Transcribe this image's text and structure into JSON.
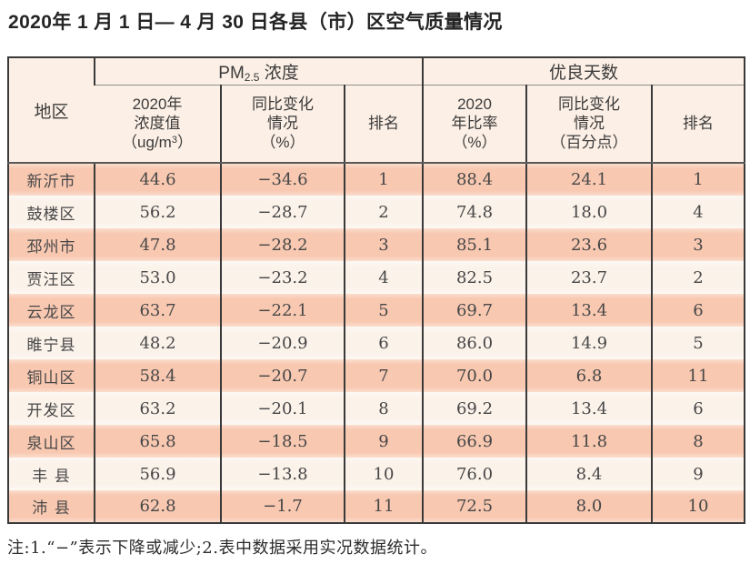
{
  "title": "2020年 1 月 1 日— 4 月 30 日各县（市）区空气质量情况",
  "table": {
    "header": {
      "region": "地区",
      "pm_group": {
        "prefix": "PM",
        "subscript": "2.5",
        "suffix": " 浓度"
      },
      "good_group": "优良天数",
      "pm_value": {
        "line1": "2020年",
        "line2": "浓度值",
        "unit_prefix": "（ug/m",
        "unit_sup": "3",
        "unit_suffix": "）"
      },
      "pm_change": {
        "line1": "同比变化",
        "line2": "情况",
        "line3": "（%）"
      },
      "pm_rank": "排名",
      "good_ratio": {
        "line1": "2020",
        "line2": "年比率",
        "line3": "（%）"
      },
      "good_change": {
        "line1": "同比变化",
        "line2": "情况",
        "line3": "（百分点）"
      },
      "good_rank": "排名"
    },
    "rows": [
      {
        "region": "新沂市",
        "pm_value": "44.6",
        "pm_change": "−34.6",
        "pm_rank": "1",
        "good_ratio": "88.4",
        "good_change": "24.1",
        "good_rank": "1"
      },
      {
        "region": "鼓楼区",
        "pm_value": "56.2",
        "pm_change": "−28.7",
        "pm_rank": "2",
        "good_ratio": "74.8",
        "good_change": "18.0",
        "good_rank": "4"
      },
      {
        "region": "邳州市",
        "pm_value": "47.8",
        "pm_change": "−28.2",
        "pm_rank": "3",
        "good_ratio": "85.1",
        "good_change": "23.6",
        "good_rank": "3"
      },
      {
        "region": "贾汪区",
        "pm_value": "53.0",
        "pm_change": "−23.2",
        "pm_rank": "4",
        "good_ratio": "82.5",
        "good_change": "23.7",
        "good_rank": "2"
      },
      {
        "region": "云龙区",
        "pm_value": "63.7",
        "pm_change": "−22.1",
        "pm_rank": "5",
        "good_ratio": "69.7",
        "good_change": "13.4",
        "good_rank": "6"
      },
      {
        "region": "睢宁县",
        "pm_value": "48.2",
        "pm_change": "−20.9",
        "pm_rank": "6",
        "good_ratio": "86.0",
        "good_change": "14.9",
        "good_rank": "5"
      },
      {
        "region": "铜山区",
        "pm_value": "58.4",
        "pm_change": "−20.7",
        "pm_rank": "7",
        "good_ratio": "70.0",
        "good_change": "6.8",
        "good_rank": "11"
      },
      {
        "region": "开发区",
        "pm_value": "63.2",
        "pm_change": "−20.1",
        "pm_rank": "8",
        "good_ratio": "69.2",
        "good_change": "13.4",
        "good_rank": "6"
      },
      {
        "region": "泉山区",
        "pm_value": "65.8",
        "pm_change": "−18.5",
        "pm_rank": "9",
        "good_ratio": "66.9",
        "good_change": "11.8",
        "good_rank": "8"
      },
      {
        "region": "丰 县",
        "pm_value": "56.9",
        "pm_change": "−13.8",
        "pm_rank": "10",
        "good_ratio": "76.0",
        "good_change": "8.4",
        "good_rank": "9"
      },
      {
        "region": "沛 县",
        "pm_value": "62.8",
        "pm_change": "−1.7",
        "pm_rank": "11",
        "good_ratio": "72.5",
        "good_change": "8.0",
        "good_rank": "10"
      }
    ]
  },
  "footnote": "注:1.“−”表示下降或减少;2.表中数据采用实况数据统计。",
  "colors": {
    "row_salmon": "#f8c8b1",
    "row_cream": "#fbf2ea",
    "header_bg": "#fcefe5",
    "border_dark": "#3a3a3a",
    "border_gray": "#8f8f8f",
    "text": "#3d3d3d"
  }
}
